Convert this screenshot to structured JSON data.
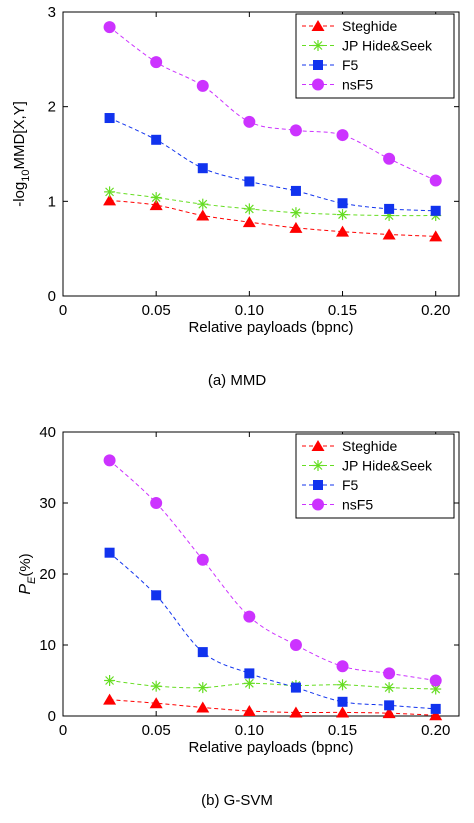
{
  "chart_data": [
    {
      "type": "line",
      "caption": "(a) MMD",
      "xlabel": "Relative payloads (bpnc)",
      "ylabel": {
        "prefix": "-log",
        "subscript": "10",
        "suffix": "MMD[X,Y]"
      },
      "xlim": [
        0,
        0.2125
      ],
      "ylim": [
        0,
        3
      ],
      "xticks": [
        "0",
        "0.05",
        "0.10",
        "0.15",
        "0.20"
      ],
      "xtick_values": [
        0,
        0.05,
        0.1,
        0.15,
        0.2
      ],
      "yticks": [
        "0",
        "1",
        "2",
        "3"
      ],
      "ytick_values": [
        0,
        1,
        2,
        3
      ],
      "grid": false,
      "legend_position": "top-right",
      "x": [
        0.025,
        0.05,
        0.075,
        0.1,
        0.125,
        0.15,
        0.175,
        0.2
      ],
      "series": [
        {
          "name": "Steghide",
          "marker": "triangle",
          "color": "#ff0000",
          "values": [
            1.01,
            0.96,
            0.85,
            0.78,
            0.72,
            0.68,
            0.65,
            0.63
          ]
        },
        {
          "name": "JP Hide&Seek",
          "marker": "asterisk",
          "color": "#66dd22",
          "values": [
            1.1,
            1.04,
            0.97,
            0.92,
            0.88,
            0.86,
            0.85,
            0.85
          ]
        },
        {
          "name": "F5",
          "marker": "square",
          "color": "#1133ee",
          "values": [
            1.88,
            1.65,
            1.35,
            1.21,
            1.11,
            0.98,
            0.92,
            0.9
          ]
        },
        {
          "name": "nsF5",
          "marker": "circle",
          "color": "#cc33ff",
          "values": [
            2.84,
            2.47,
            2.22,
            1.84,
            1.75,
            1.7,
            1.45,
            1.22
          ]
        }
      ]
    },
    {
      "type": "line",
      "caption": "(b) G-SVM",
      "xlabel": "Relative payloads (bpnc)",
      "ylabel": {
        "main": "P",
        "subscript": "E",
        "suffix": "(%)"
      },
      "xlim": [
        0,
        0.2125
      ],
      "ylim": [
        0,
        40
      ],
      "xticks": [
        "0",
        "0.05",
        "0.10",
        "0.15",
        "0.20"
      ],
      "xtick_values": [
        0,
        0.05,
        0.1,
        0.15,
        0.2
      ],
      "yticks": [
        "0",
        "10",
        "20",
        "30",
        "40"
      ],
      "ytick_values": [
        0,
        10,
        20,
        30,
        40
      ],
      "grid": false,
      "legend_position": "top-right",
      "x": [
        0.025,
        0.05,
        0.075,
        0.1,
        0.125,
        0.15,
        0.175,
        0.2
      ],
      "series": [
        {
          "name": "Steghide",
          "marker": "triangle",
          "color": "#ff0000",
          "values": [
            2.3,
            1.8,
            1.2,
            0.7,
            0.5,
            0.5,
            0.4,
            0.1
          ]
        },
        {
          "name": "JP Hide&Seek",
          "marker": "asterisk",
          "color": "#66dd22",
          "values": [
            5.0,
            4.2,
            4.0,
            4.6,
            4.3,
            4.4,
            4.0,
            3.8
          ]
        },
        {
          "name": "F5",
          "marker": "square",
          "color": "#1133ee",
          "values": [
            23.0,
            17.0,
            9.0,
            6.0,
            4.0,
            2.0,
            1.5,
            1.0
          ]
        },
        {
          "name": "nsF5",
          "marker": "circle",
          "color": "#cc33ff",
          "values": [
            36.0,
            30.0,
            22.0,
            14.0,
            10.0,
            7.0,
            6.0,
            5.0
          ]
        }
      ]
    }
  ]
}
